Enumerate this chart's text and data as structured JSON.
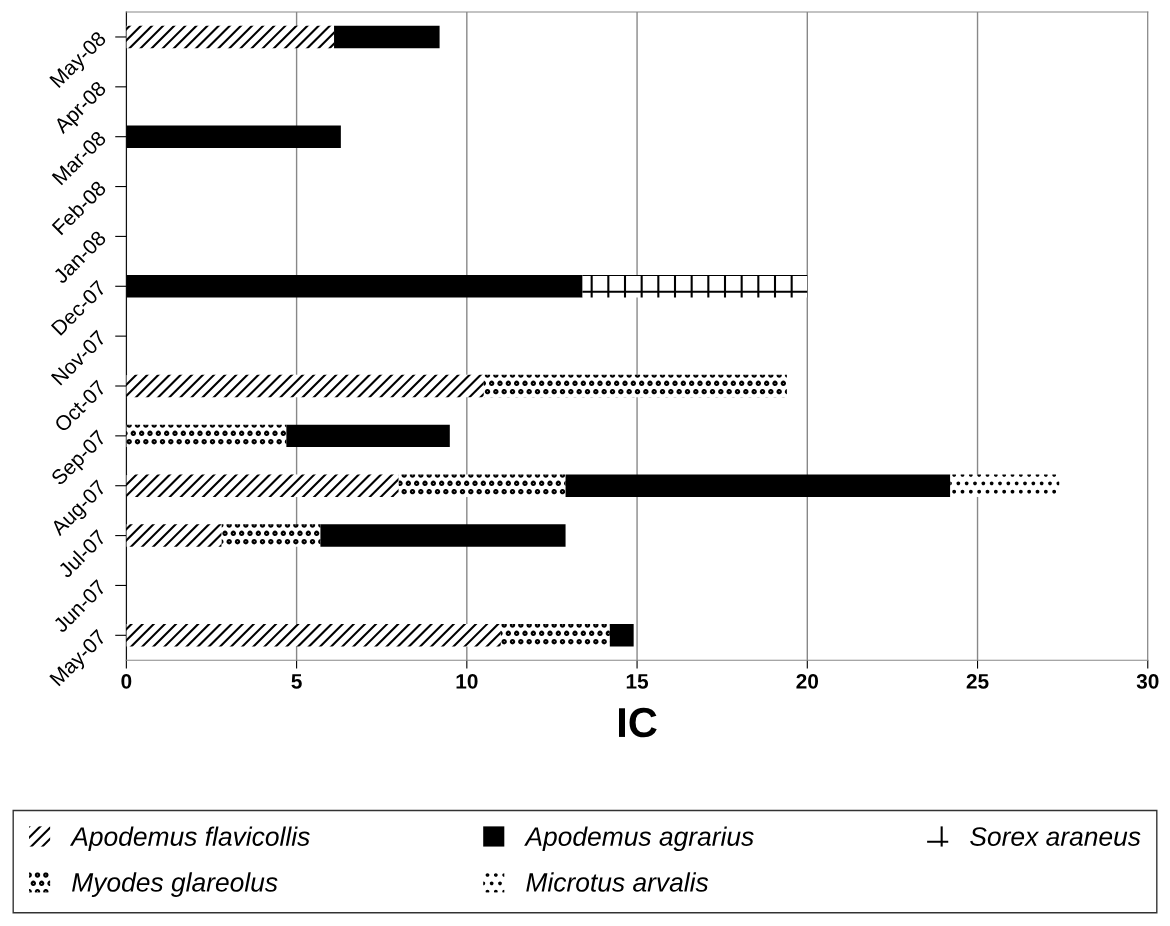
{
  "chart_data": {
    "type": "bar",
    "orientation": "horizontal",
    "stacked": true,
    "xlabel": "IC",
    "categories": [
      "May-08",
      "Apr-08",
      "Mar-08",
      "Feb-08",
      "Jan-08",
      "Dec-07",
      "Nov-07",
      "Oct-07",
      "Sep-07",
      "Aug-07",
      "Jul-07",
      "Jun-07",
      "May-07"
    ],
    "series": [
      {
        "name": "Apodemus flavicollis",
        "color": "#ffffff",
        "values": [
          6.1,
          null,
          null,
          null,
          null,
          null,
          null,
          10.5,
          null,
          8.0,
          2.8,
          null,
          11.0
        ]
      },
      {
        "name": "Myodes glareolus",
        "color": "#ffffff",
        "values": [
          null,
          null,
          null,
          null,
          null,
          null,
          null,
          8.9,
          4.7,
          4.9,
          2.9,
          null,
          3.2
        ]
      },
      {
        "name": "Apodemus agrarius",
        "color": "#000000",
        "values": [
          3.1,
          null,
          6.3,
          null,
          null,
          13.4,
          null,
          null,
          4.8,
          11.3,
          7.2,
          null,
          0.7
        ]
      },
      {
        "name": "Microtus arvalis",
        "color": "#ffffff",
        "values": [
          null,
          null,
          null,
          null,
          null,
          null,
          null,
          null,
          null,
          3.2,
          null,
          null,
          null
        ]
      },
      {
        "name": "Sorex araneus",
        "color": "#ffffff",
        "values": [
          null,
          null,
          null,
          null,
          null,
          6.6,
          null,
          null,
          null,
          null,
          null,
          null,
          null
        ]
      }
    ],
    "xlim": [
      0,
      30
    ],
    "xticks": [
      0,
      5,
      10,
      15,
      20,
      25,
      30
    ],
    "grid": "x",
    "legend": "bottom"
  }
}
